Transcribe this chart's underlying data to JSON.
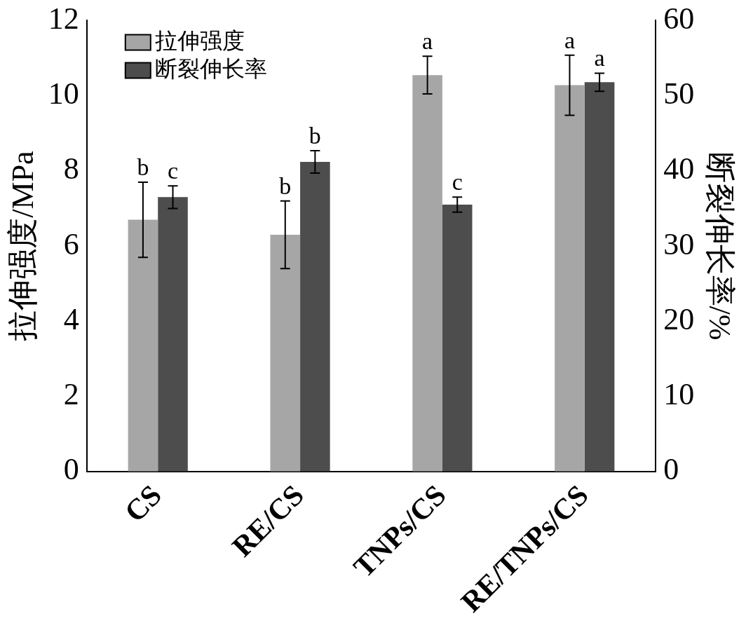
{
  "chart_data": {
    "type": "bar",
    "categories": [
      "CS",
      "RE/CS",
      "TNPs/CS",
      "RE/TNPs/CS"
    ],
    "ylabel": "拉伸强度/MPa",
    "y2label": "断裂伸长率/%",
    "ylim": [
      0,
      12
    ],
    "yticks": [
      0,
      2,
      4,
      6,
      8,
      10,
      12
    ],
    "y2lim": [
      0,
      60
    ],
    "y2ticks": [
      0,
      10,
      20,
      30,
      40,
      50,
      60
    ],
    "grid": false,
    "legend": "top left",
    "series": [
      {
        "name": "拉伸强度",
        "color": "#a6a6a6",
        "values": [
          6.7,
          6.3,
          10.55,
          10.28
        ],
        "errors": [
          1.0,
          0.9,
          0.5,
          0.8
        ],
        "value_labels": [
          "b",
          "b",
          "a",
          "a"
        ]
      },
      {
        "name": "断裂伸长率",
        "color": "#4d4d4d",
        "axis": "y2",
        "values": [
          36.5,
          41.2,
          35.5,
          51.8
        ],
        "errors": [
          1.5,
          1.5,
          1.0,
          1.2
        ],
        "value_labels": [
          "c",
          "b",
          "c",
          "a"
        ]
      }
    ]
  }
}
